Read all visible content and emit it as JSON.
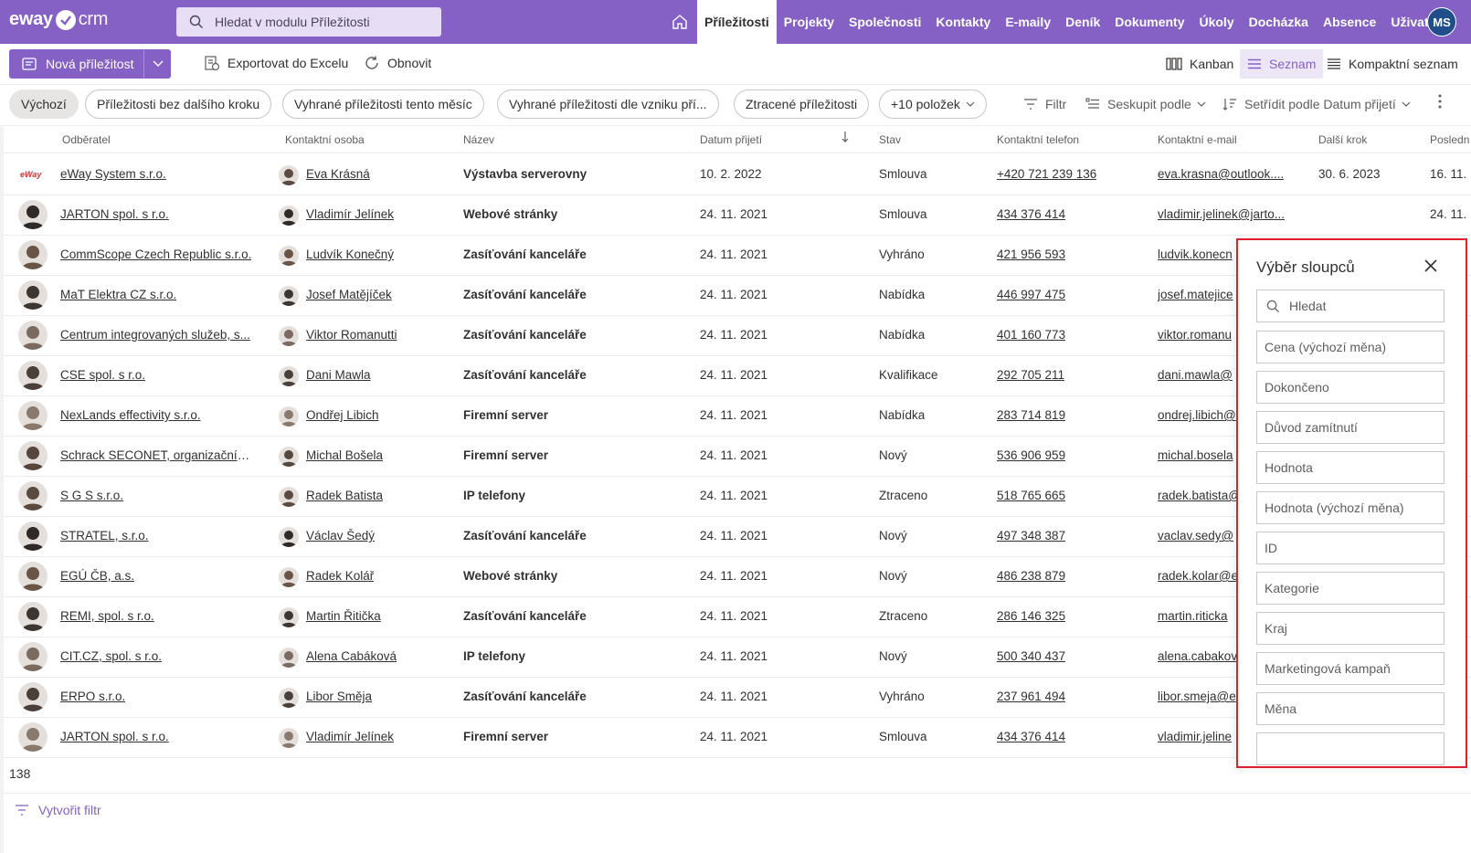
{
  "app": {
    "logo_left": "eway",
    "logo_right": "crm"
  },
  "search": {
    "placeholder": "Hledat v modulu Příležitosti"
  },
  "nav": {
    "items": [
      "Příležitosti",
      "Projekty",
      "Společnosti",
      "Kontakty",
      "E-maily",
      "Deník",
      "Dokumenty",
      "Úkoly",
      "Docházka",
      "Absence",
      "Uživatelé"
    ],
    "active": "Příležitosti",
    "user_initials": "MS"
  },
  "toolbar": {
    "new_label": "Nová příležitost",
    "export_label": "Exportovat do Excelu",
    "refresh_label": "Obnovit",
    "kanban_label": "Kanban",
    "list_label": "Seznam",
    "compact_label": "Kompaktní seznam"
  },
  "filters": {
    "chips": [
      "Výchozí",
      "Příležitosti bez dalšího kroku",
      "Vyhrané příležitosti tento měsíc",
      "Vyhrané příležitosti dle vzniku pří...",
      "Ztracené příležitosti",
      "+10 položek"
    ],
    "active": "Výchozí",
    "filter_label": "Filtr",
    "group_label": "Seskupit podle",
    "sort_label": "Setřídit podle Datum přijetí"
  },
  "table": {
    "columns": [
      "Odběratel",
      "Kontaktní osoba",
      "Název",
      "Datum přijetí",
      "Stav",
      "Kontaktní telefon",
      "Kontaktní e-mail",
      "Další krok",
      "Posledn"
    ],
    "rows": [
      {
        "customer": "eWay System s.r.o.",
        "contact": "Eva Krásná",
        "name": "Výstavba serverovny",
        "date": "10. 2. 2022",
        "state": "Smlouva",
        "phone": "+420 721 239 136",
        "email": "eva.krasna@outlook....",
        "next": "30. 6. 2023",
        "last": "16. 11."
      },
      {
        "customer": "JARTON spol. s r.o.",
        "contact": "Vladimír Jelínek",
        "name": "Webové stránky",
        "date": "24. 11. 2021",
        "state": "Smlouva",
        "phone": "434 376 414",
        "email": "vladimir.jelinek@jarto...",
        "next": "",
        "last": "24. 11."
      },
      {
        "customer": "CommScope Czech Republic s.r.o.",
        "contact": "Ludvík Konečný",
        "name": "Zasíťování kanceláře",
        "date": "24. 11. 2021",
        "state": "Vyhráno",
        "phone": "421 956 593",
        "email": "ludvik.konecn",
        "next": "",
        "last": ""
      },
      {
        "customer": "MaT Elektra CZ s.r.o.",
        "contact": "Josef Matějíček",
        "name": "Zasíťování kanceláře",
        "date": "24. 11. 2021",
        "state": "Nabídka",
        "phone": "446 997 475",
        "email": "josef.matejice",
        "next": "",
        "last": ""
      },
      {
        "customer": "Centrum integrovaných služeb, s...",
        "contact": "Viktor Romanutti",
        "name": "Zasíťování kanceláře",
        "date": "24. 11. 2021",
        "state": "Nabídka",
        "phone": "401 160 773",
        "email": "viktor.romanu",
        "next": "",
        "last": ""
      },
      {
        "customer": "CSE spol. s r.o.",
        "contact": "Dani Mawla",
        "name": "Zasíťování kanceláře",
        "date": "24. 11. 2021",
        "state": "Kvalifikace",
        "phone": "292 705 211",
        "email": "dani.mawla@",
        "next": "",
        "last": ""
      },
      {
        "customer": "NexLands effectivity s.r.o.",
        "contact": "Ondřej Libich",
        "name": "Firemní server",
        "date": "24. 11. 2021",
        "state": "Nabídka",
        "phone": "283 714 819",
        "email": "ondrej.libich@",
        "next": "",
        "last": ""
      },
      {
        "customer": "Schrack SECONET, organizační sl...",
        "contact": "Michal Bošela",
        "name": "Firemní server",
        "date": "24. 11. 2021",
        "state": "Nový",
        "phone": "536 906 959",
        "email": "michal.bosela",
        "next": "",
        "last": ""
      },
      {
        "customer": "S G S s.r.o.",
        "contact": "Radek Batista",
        "name": "IP telefony",
        "date": "24. 11. 2021",
        "state": "Ztraceno",
        "phone": "518 765 665",
        "email": "radek.batista@",
        "next": "",
        "last": ""
      },
      {
        "customer": "STRATEL, s.r.o.",
        "contact": "Václav Šedý",
        "name": "Zasíťování kanceláře",
        "date": "24. 11. 2021",
        "state": "Nový",
        "phone": "497 348 387",
        "email": "vaclav.sedy@",
        "next": "",
        "last": ""
      },
      {
        "customer": "EGÚ ČB, a.s.",
        "contact": "Radek Kolář",
        "name": "Webové stránky",
        "date": "24. 11. 2021",
        "state": "Nový",
        "phone": "486 238 879",
        "email": "radek.kolar@e",
        "next": "",
        "last": ""
      },
      {
        "customer": "REMI, spol. s r.o.",
        "contact": "Martin Řitička",
        "name": "Zasíťování kanceláře",
        "date": "24. 11. 2021",
        "state": "Ztraceno",
        "phone": "286 146 325",
        "email": "martin.riticka",
        "next": "",
        "last": ""
      },
      {
        "customer": "CIT.CZ, spol. s r.o.",
        "contact": "Alena Cabáková",
        "name": "IP telefony",
        "date": "24. 11. 2021",
        "state": "Nový",
        "phone": "500 340 437",
        "email": "alena.cabakov",
        "next": "",
        "last": ""
      },
      {
        "customer": "ERPO s.r.o.",
        "contact": "Libor Směja",
        "name": "Zasíťování kanceláře",
        "date": "24. 11. 2021",
        "state": "Vyhráno",
        "phone": "237 961 494",
        "email": "libor.smeja@e",
        "next": "",
        "last": ""
      },
      {
        "customer": "JARTON spol. s r.o.",
        "contact": "Vladimír Jelínek",
        "name": "Firemní server",
        "date": "24. 11. 2021",
        "state": "Smlouva",
        "phone": "434 376 414",
        "email": "vladimir.jeline",
        "next": "",
        "last": ""
      }
    ],
    "total": "138",
    "create_filter_label": "Vytvořit filtr",
    "row_logo_text": "eWay"
  },
  "column_picker": {
    "title": "Výběr sloupců",
    "search_placeholder": "Hledat",
    "options": [
      "Cena (výchozí měna)",
      "Dokončeno",
      "Důvod zamítnutí",
      "Hodnota",
      "Hodnota (výchozí měna)",
      "ID",
      "Kategorie",
      "Kraj",
      "Marketingová kampaň",
      "Měna"
    ]
  },
  "colors": {
    "brand": "#8561c5",
    "panel_border": "#e0202a"
  }
}
